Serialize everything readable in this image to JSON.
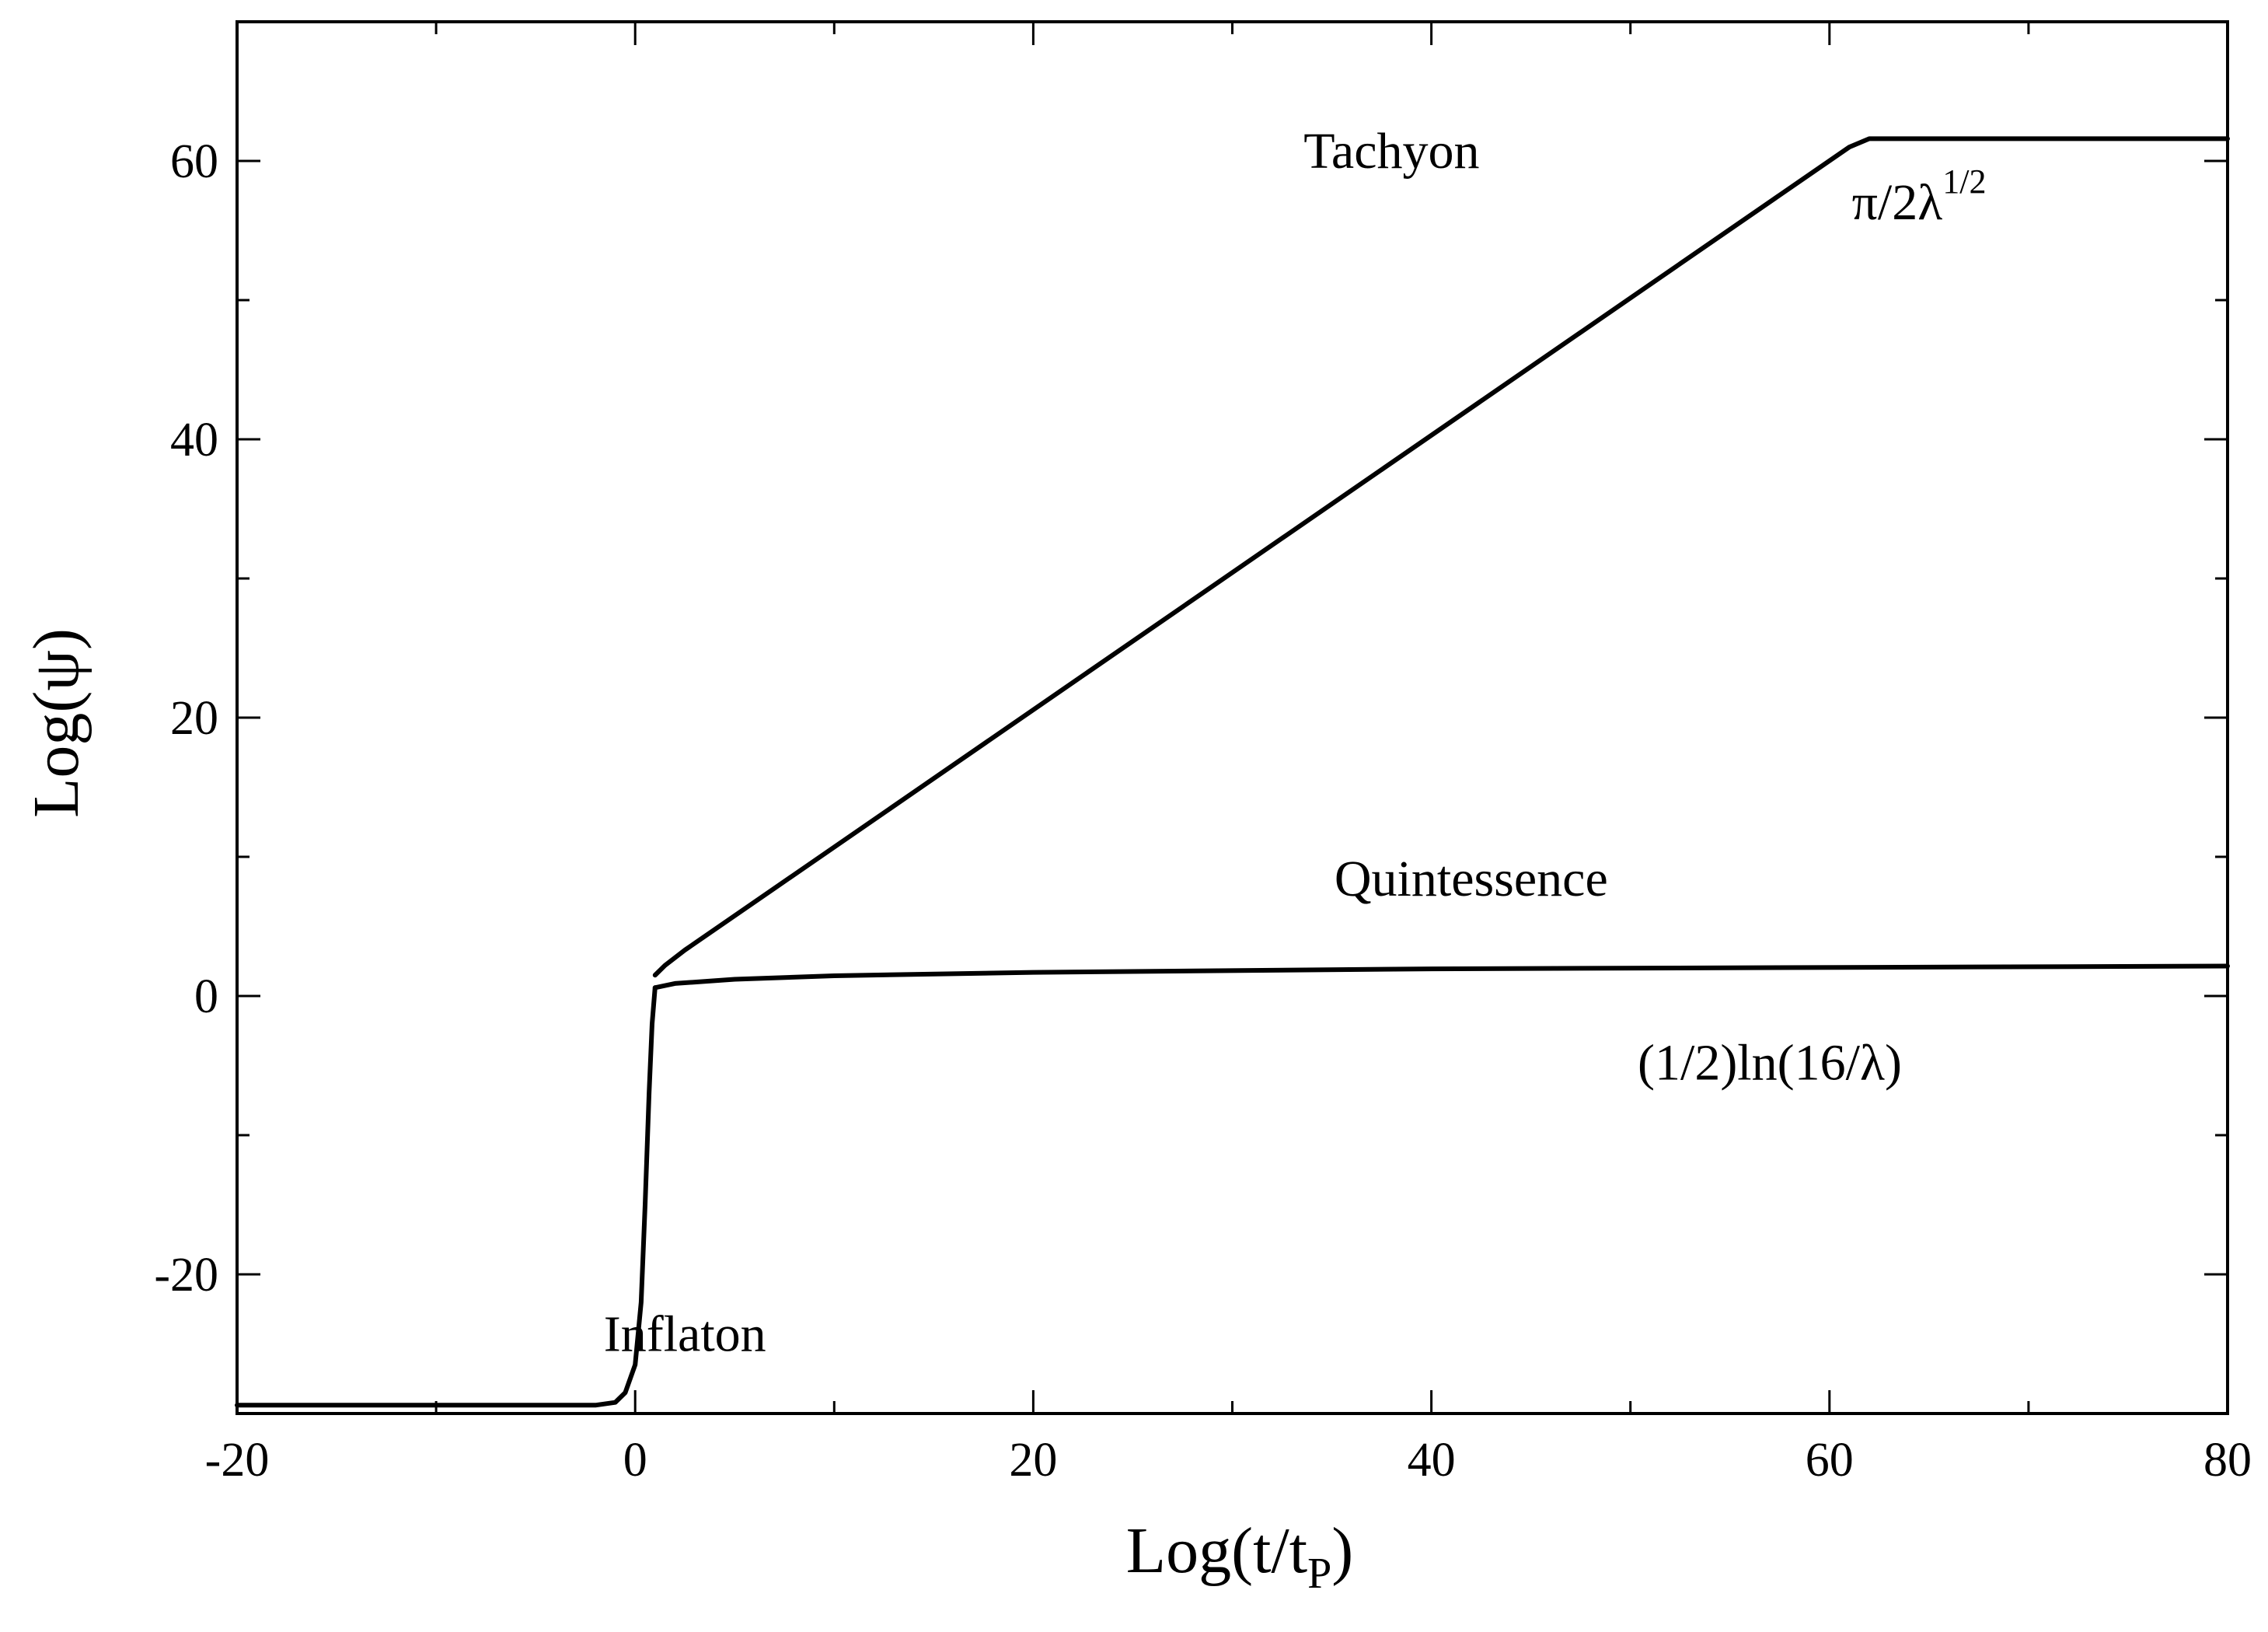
{
  "chart_data": {
    "type": "line",
    "xlabel": {
      "main": "Log(t/t",
      "sub": "P",
      "close": ")"
    },
    "ylabel": "Log(ψ)",
    "xlim": [
      -20,
      80
    ],
    "ylim": [
      -30,
      70
    ],
    "xticks": [
      -20,
      0,
      20,
      40,
      60,
      80
    ],
    "xtick_labels": [
      "-20",
      "0",
      "20",
      "40",
      "60",
      "80"
    ],
    "xminor": [
      -10,
      10,
      30,
      50,
      70
    ],
    "yticks": [
      -20,
      0,
      20,
      40,
      60
    ],
    "ytick_labels": [
      "-20",
      "0",
      "20",
      "40",
      "60"
    ],
    "yminor": [
      -10,
      10,
      30,
      50
    ],
    "grid": false,
    "series": [
      {
        "name": "Tachyon",
        "color": "#000000",
        "x": [
          1.0,
          1.5,
          2.5,
          61.0,
          62.0,
          80.0
        ],
        "y": [
          1.5,
          2.2,
          3.3,
          61.0,
          61.6,
          61.6
        ]
      },
      {
        "name": "Quintessence",
        "color": "#000000",
        "x": [
          1.0,
          2.0,
          5.0,
          10.0,
          20.0,
          40.0,
          80.0
        ],
        "y": [
          0.6,
          0.9,
          1.2,
          1.45,
          1.7,
          1.95,
          2.15
        ]
      },
      {
        "name": "Inflaton",
        "color": "#000000",
        "x": [
          -20.0,
          -2.0,
          -1.0,
          -0.5,
          0.0,
          0.3,
          0.5,
          0.7,
          0.85,
          1.0
        ],
        "y": [
          -29.4,
          -29.4,
          -29.2,
          -28.5,
          -26.5,
          -22.0,
          -15.0,
          -7.0,
          -2.0,
          0.6
        ]
      }
    ],
    "annotations": [
      {
        "id": "tachyon",
        "text": "Tachyon",
        "x": 38,
        "y": 59.5
      },
      {
        "id": "asymptote-tachyon",
        "text": "π/2λ",
        "sup": "1/2",
        "x": 64.5,
        "y": 55.8
      },
      {
        "id": "quintessence",
        "text": "Quintessence",
        "x": 42,
        "y": 7.2
      },
      {
        "id": "asymptote-quintessence",
        "text": "(1/2)ln(16/λ)",
        "x": 57,
        "y": -6.0
      },
      {
        "id": "inflaton",
        "text": "Inflaton",
        "x": 2.5,
        "y": -25.5
      }
    ]
  }
}
